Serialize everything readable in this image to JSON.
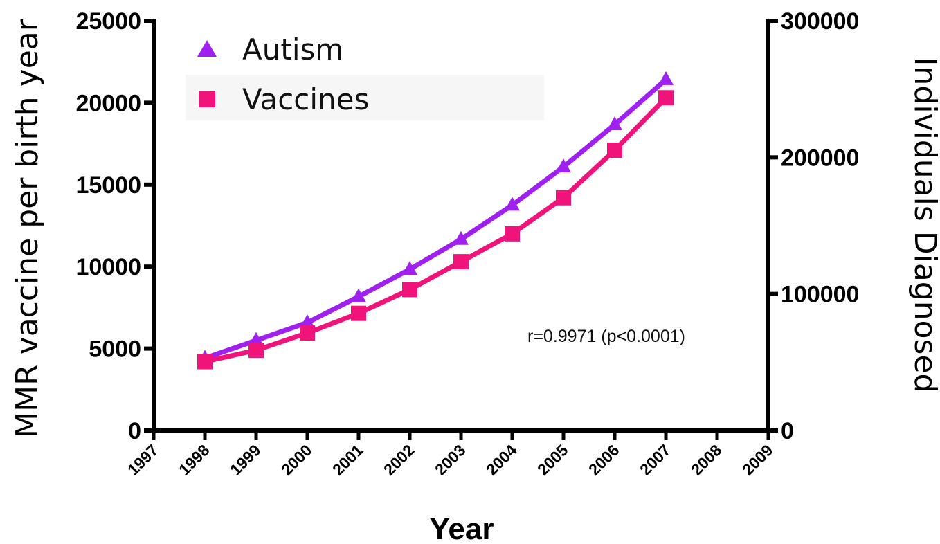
{
  "chart_data": {
    "type": "line",
    "x": [
      1998,
      1999,
      2000,
      2001,
      2002,
      2003,
      2004,
      2005,
      2006,
      2007
    ],
    "x_ticks": [
      "1997",
      "1998",
      "1999",
      "2000",
      "2001",
      "2002",
      "2003",
      "2004",
      "2005",
      "2006",
      "2007",
      "2008",
      "2009"
    ],
    "xlim": [
      1997,
      2009
    ],
    "xlabel": "Year",
    "ylabel_left": "MMR vaccine per birth year",
    "ylim_left": [
      0,
      25000
    ],
    "y_ticks_left": [
      "0",
      "5000",
      "10000",
      "15000",
      "20000",
      "25000"
    ],
    "ylabel_right": "Individuals Diagnosed",
    "ylim_right": [
      0,
      300000
    ],
    "y_ticks_right": [
      "0",
      "100000",
      "200000",
      "300000"
    ],
    "series": [
      {
        "name": "Autism",
        "axis": "right",
        "marker": "triangle",
        "color": "#A020F0",
        "values": [
          53000,
          66000,
          79000,
          98000,
          118000,
          140000,
          165000,
          193000,
          224000,
          257000
        ]
      },
      {
        "name": "Vaccines",
        "axis": "left",
        "marker": "square",
        "color": "#F0147A",
        "values": [
          4200,
          4900,
          5950,
          7150,
          8600,
          10300,
          12000,
          14200,
          17100,
          20300
        ]
      }
    ],
    "annotation": "r=0.9971 (p<0.0001)",
    "legend_position": "top-left",
    "grid": false
  }
}
